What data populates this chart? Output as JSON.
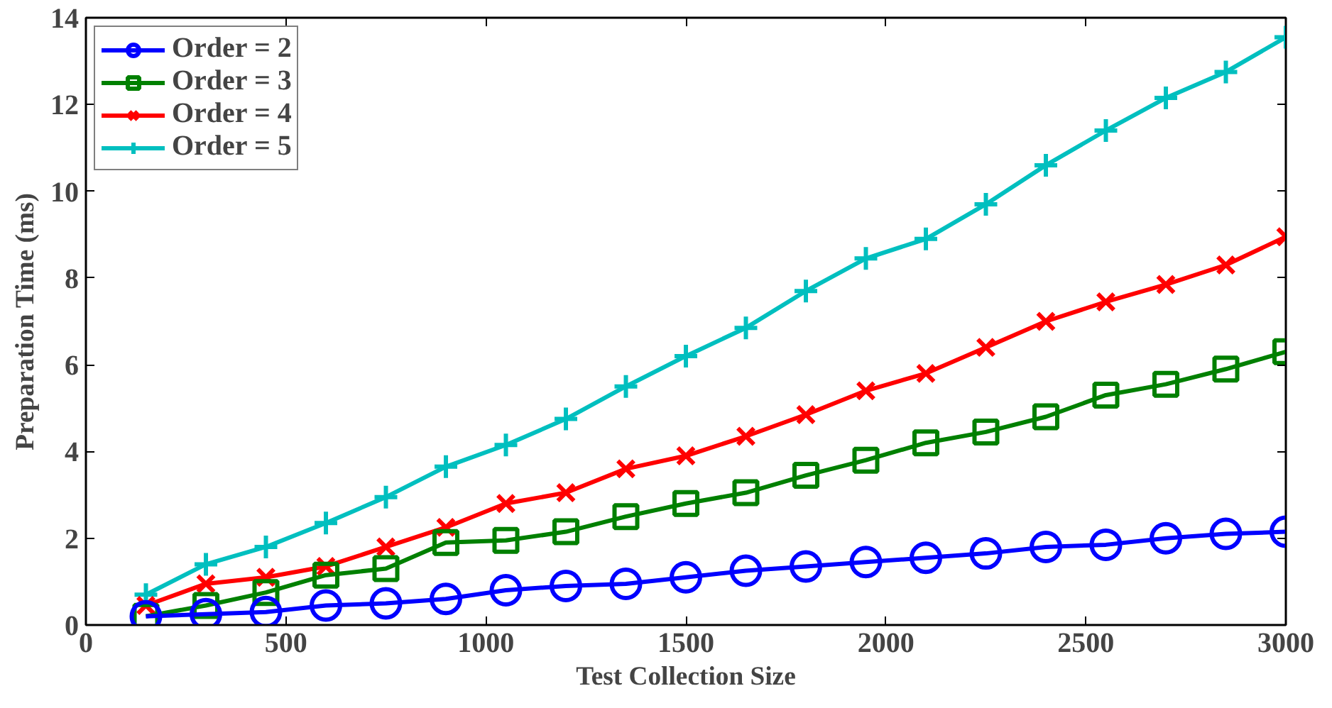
{
  "chart_data": {
    "type": "line",
    "xlabel": "Test Collection Size",
    "ylabel": "Preparation Time (ms)",
    "x": [
      150,
      300,
      450,
      600,
      750,
      900,
      1050,
      1200,
      1350,
      1500,
      1650,
      1800,
      1950,
      2100,
      2250,
      2400,
      2550,
      2700,
      2850,
      3000
    ],
    "series": [
      {
        "name": "Order = 2",
        "color": "#0000ff",
        "marker": "circle",
        "values": [
          0.2,
          0.25,
          0.3,
          0.45,
          0.5,
          0.6,
          0.8,
          0.9,
          0.95,
          1.1,
          1.25,
          1.35,
          1.45,
          1.55,
          1.65,
          1.8,
          1.85,
          2.0,
          2.1,
          2.15
        ]
      },
      {
        "name": "Order = 3",
        "color": "#008000",
        "marker": "square",
        "values": [
          0.2,
          0.45,
          0.75,
          1.15,
          1.3,
          1.9,
          1.95,
          2.15,
          2.5,
          2.8,
          3.05,
          3.45,
          3.8,
          4.2,
          4.45,
          4.8,
          5.3,
          5.55,
          5.9,
          6.3
        ]
      },
      {
        "name": "Order = 4",
        "color": "#ff0000",
        "marker": "x",
        "values": [
          0.45,
          0.95,
          1.1,
          1.35,
          1.8,
          2.25,
          2.8,
          3.05,
          3.6,
          3.9,
          4.35,
          4.85,
          5.4,
          5.8,
          6.4,
          7.0,
          7.45,
          7.85,
          8.3,
          8.95
        ]
      },
      {
        "name": "Order = 5",
        "color": "#00bfbf",
        "marker": "cross",
        "values": [
          0.7,
          1.4,
          1.8,
          2.35,
          2.95,
          3.65,
          4.15,
          4.75,
          5.5,
          6.2,
          6.85,
          7.7,
          8.45,
          8.9,
          9.7,
          10.6,
          11.4,
          12.15,
          12.75,
          13.55
        ]
      }
    ],
    "xlim": [
      0,
      3000
    ],
    "ylim": [
      0,
      14
    ],
    "xticks": [
      0,
      500,
      1000,
      1500,
      2000,
      2500,
      3000
    ],
    "yticks": [
      0,
      2,
      4,
      6,
      8,
      10,
      12,
      14
    ],
    "grid": false,
    "legend": "top left",
    "line_style": "solid"
  }
}
